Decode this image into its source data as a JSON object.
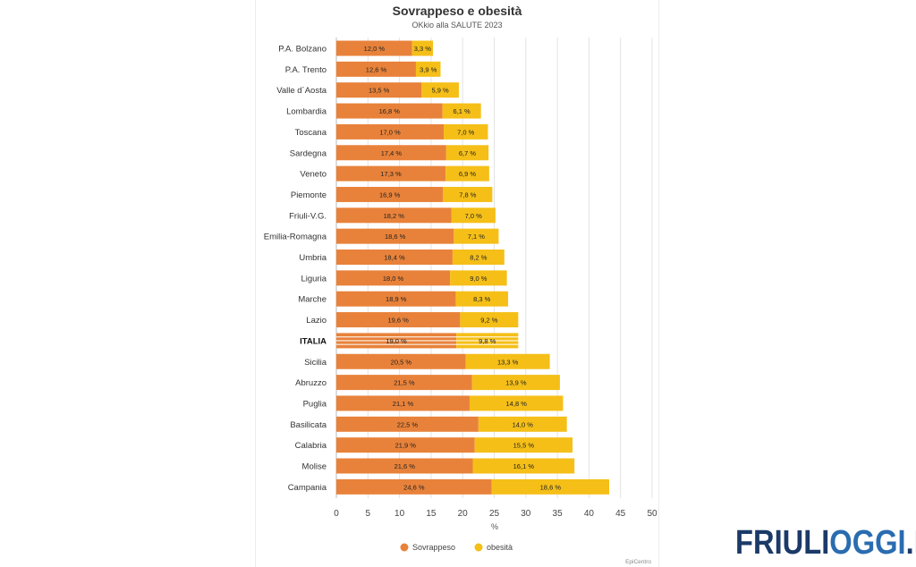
{
  "chart_data": {
    "type": "bar",
    "orientation": "horizontal",
    "stacked": true,
    "title": "Sovrappeso e obesità",
    "subtitle": "OKkio alla SALUTE 2023",
    "xlabel": "%",
    "xlim": [
      0,
      50
    ],
    "xticks": [
      0,
      5,
      10,
      15,
      20,
      25,
      30,
      35,
      40,
      45,
      50
    ],
    "grid": true,
    "legend": "bottom",
    "categories": [
      "P.A. Bolzano",
      "P.A. Trento",
      "Valle d´Aosta",
      "Lombardia",
      "Toscana",
      "Sardegna",
      "Veneto",
      "Piemonte",
      "Friuli-V.G.",
      "Emilia-Romagna",
      "Umbria",
      "Liguria",
      "Marche",
      "Lazio",
      "ITALIA",
      "Sicilia",
      "Abruzzo",
      "Puglia",
      "Basilicata",
      "Calabria",
      "Molise",
      "Campania"
    ],
    "highlight_category": "ITALIA",
    "series": [
      {
        "name": "Sovrappeso",
        "color": "#e8823a",
        "values": [
          12.0,
          12.6,
          13.5,
          16.8,
          17.0,
          17.4,
          17.3,
          16.9,
          18.2,
          18.6,
          18.4,
          18.0,
          18.9,
          19.6,
          19.0,
          20.5,
          21.5,
          21.1,
          22.5,
          21.9,
          21.6,
          24.6
        ],
        "labels": [
          "12,0 %",
          "12,6 %",
          "13,5 %",
          "16,8 %",
          "17,0 %",
          "17,4 %",
          "17,3 %",
          "16,9 %",
          "18,2 %",
          "18,6 %",
          "18,4 %",
          "18,0 %",
          "18,9 %",
          "19,6 %",
          "19,0 %",
          "20,5 %",
          "21,5 %",
          "21,1 %",
          "22,5 %",
          "21,9 %",
          "21,6 %",
          "24,6 %"
        ]
      },
      {
        "name": "obesità",
        "color": "#f5bf18",
        "values": [
          3.3,
          3.9,
          5.9,
          6.1,
          7.0,
          6.7,
          6.9,
          7.8,
          7.0,
          7.1,
          8.2,
          9.0,
          8.3,
          9.2,
          9.8,
          13.3,
          13.9,
          14.8,
          14.0,
          15.5,
          16.1,
          18.6
        ],
        "labels": [
          "3,3 %",
          "3,9 %",
          "5,9 %",
          "6,1 %",
          "7,0 %",
          "6,7 %",
          "6,9 %",
          "7,8 %",
          "7,0 %",
          "7,1 %",
          "8,2 %",
          "9,0 %",
          "8,3 %",
          "9,2 %",
          "9,8 %",
          "13,3 %",
          "13,9 %",
          "14,8 %",
          "14,0 %",
          "15,5 %",
          "16,1 %",
          "18,6 %"
        ]
      }
    ],
    "credit": "EpiCentro"
  },
  "brand": {
    "part1": "FRIULI",
    "part2": "OGGI",
    "part3": ".IT",
    "color_dark": "#1b3a68",
    "color_accent": "#2a6cb0"
  }
}
